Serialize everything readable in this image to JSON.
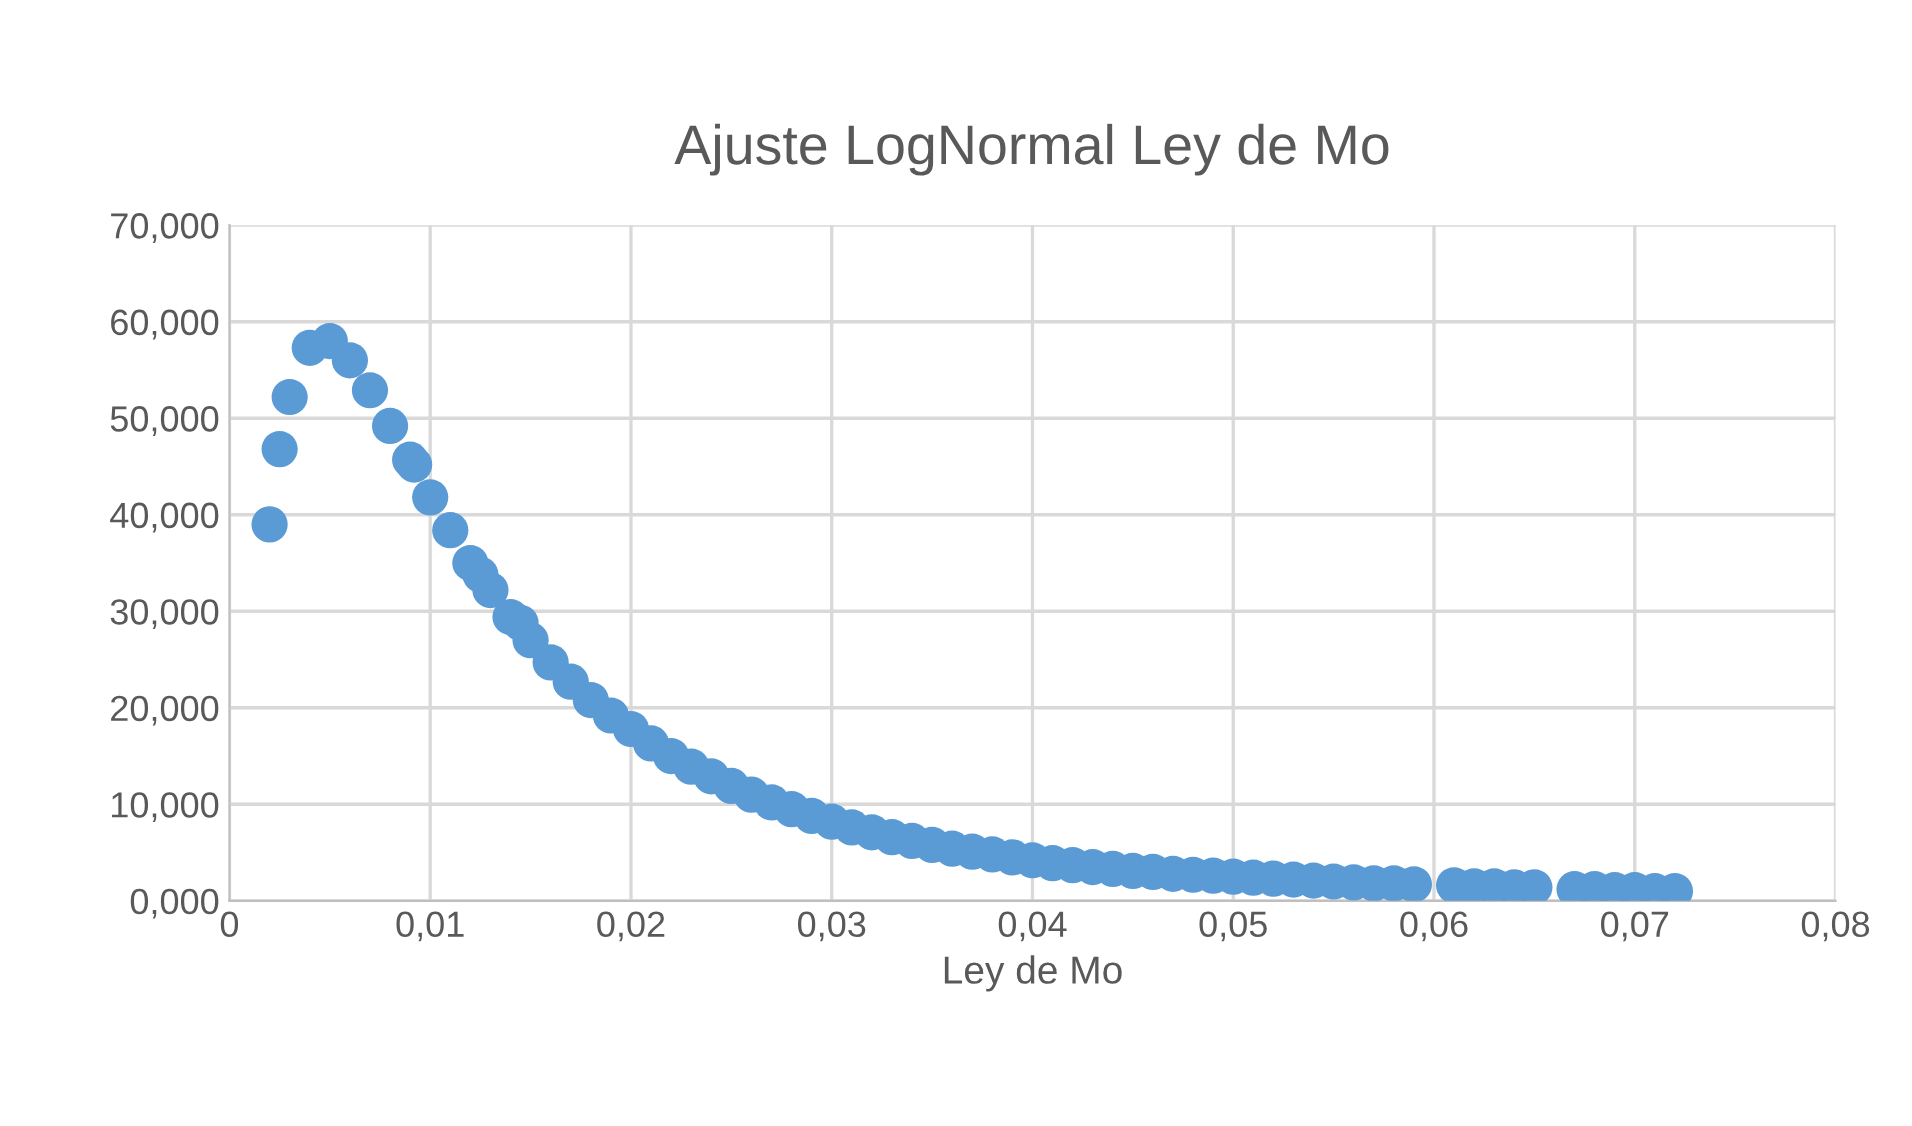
{
  "chart_data": {
    "type": "scatter",
    "title": "Ajuste LogNormal Ley de Mo",
    "xlabel": "Ley de Mo",
    "x": [
      0.002,
      0.0025,
      0.003,
      0.004,
      0.005,
      0.006,
      0.007,
      0.008,
      0.009,
      0.0092,
      0.01,
      0.011,
      0.012,
      0.0125,
      0.013,
      0.014,
      0.0145,
      0.015,
      0.016,
      0.017,
      0.018,
      0.019,
      0.02,
      0.021,
      0.022,
      0.023,
      0.024,
      0.025,
      0.026,
      0.027,
      0.028,
      0.029,
      0.03,
      0.031,
      0.032,
      0.033,
      0.034,
      0.035,
      0.036,
      0.037,
      0.038,
      0.039,
      0.04,
      0.041,
      0.042,
      0.043,
      0.044,
      0.045,
      0.046,
      0.047,
      0.048,
      0.049,
      0.05,
      0.051,
      0.052,
      0.053,
      0.054,
      0.055,
      0.056,
      0.057,
      0.058,
      0.059,
      0.061,
      0.062,
      0.063,
      0.064,
      0.065,
      0.067,
      0.068,
      0.069,
      0.07,
      0.071,
      0.072
    ],
    "series": [
      {
        "color": "#5b9bd5",
        "values": [
          39.0,
          46.8,
          52.2,
          57.3,
          58.0,
          56.0,
          52.9,
          49.2,
          45.7,
          45.2,
          41.8,
          38.4,
          35.0,
          33.8,
          32.2,
          29.4,
          28.8,
          27.0,
          24.7,
          22.7,
          20.8,
          19.2,
          17.8,
          16.3,
          15.0,
          13.9,
          12.9,
          11.9,
          11.0,
          10.2,
          9.5,
          8.8,
          8.2,
          7.6,
          7.1,
          6.6,
          6.2,
          5.8,
          5.4,
          5.1,
          4.8,
          4.5,
          4.2,
          3.9,
          3.7,
          3.5,
          3.3,
          3.1,
          3.0,
          2.8,
          2.7,
          2.6,
          2.5,
          2.4,
          2.3,
          2.2,
          2.1,
          2.0,
          1.9,
          1.8,
          1.8,
          1.7,
          1.6,
          1.5,
          1.5,
          1.4,
          1.4,
          1.2,
          1.2,
          1.1,
          1.1,
          1.0,
          1.0
        ]
      }
    ],
    "xlim": [
      0,
      0.08
    ],
    "ylim": [
      0,
      70
    ],
    "xticks": [
      0,
      {
        "value": 0.01,
        "label": "0,01"
      },
      {
        "value": 0.02,
        "label": "0,02"
      },
      {
        "value": 0.03,
        "label": "0,03"
      },
      {
        "value": 0.04,
        "label": "0,04"
      },
      {
        "value": 0.05,
        "label": "0,05"
      },
      {
        "value": 0.06,
        "label": "0,06"
      },
      {
        "value": 0.07,
        "label": "0,07"
      },
      {
        "value": 0.08,
        "label": "0,08"
      }
    ],
    "yticks": [
      {
        "value": 0,
        "label": "0,000"
      },
      {
        "value": 10,
        "label": "10,000"
      },
      {
        "value": 20,
        "label": "20,000"
      },
      {
        "value": 30,
        "label": "30,000"
      },
      {
        "value": 40,
        "label": "40,000"
      },
      {
        "value": 50,
        "label": "50,000"
      },
      {
        "value": 60,
        "label": "60,000"
      },
      {
        "value": 70,
        "label": "70,000"
      }
    ],
    "grid": true,
    "marker": "circle",
    "legend": false
  }
}
